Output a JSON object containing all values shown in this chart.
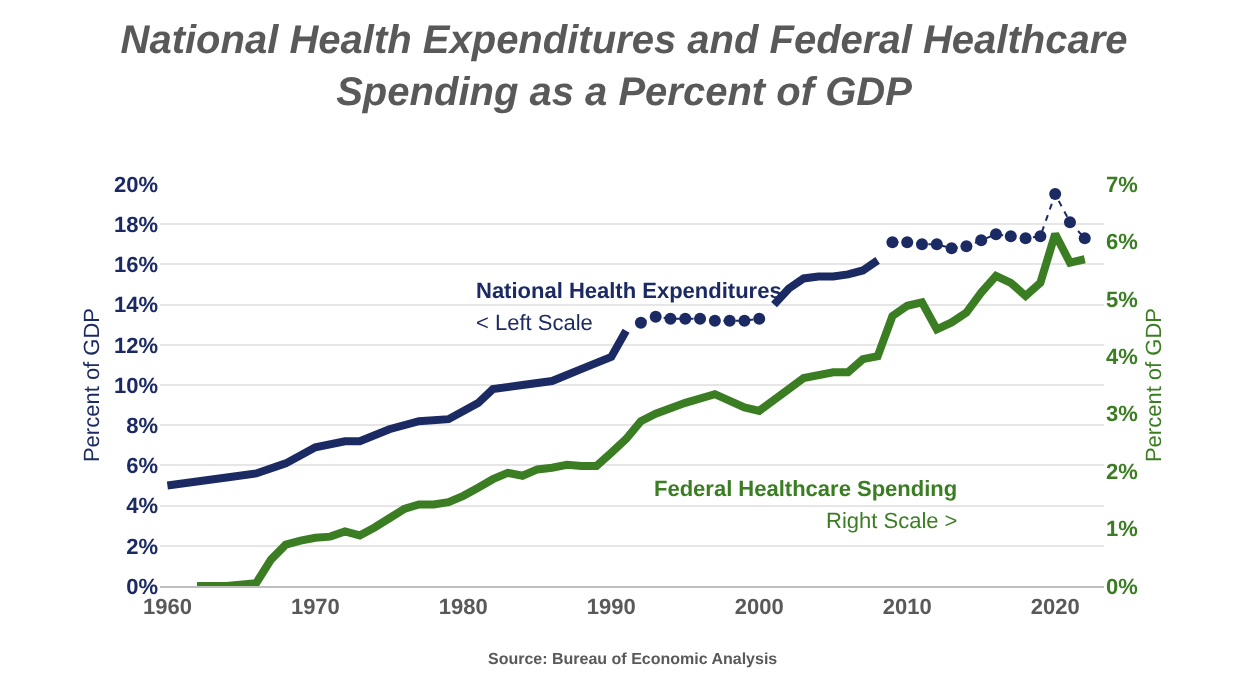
{
  "chart_data": {
    "type": "line",
    "title": "National Health Expenditures and Federal Healthcare\nSpending as a Percent of GDP",
    "ylabel": "Percent of GDP",
    "y2label": "Percent of GDP",
    "xlim": [
      1959.5,
      2023.3
    ],
    "xticks": [
      1960,
      1970,
      1980,
      1990,
      2000,
      2010,
      2020
    ],
    "ylim": [
      0,
      20
    ],
    "yticks": [
      {
        "value": 0,
        "label": "0%"
      },
      {
        "value": 2,
        "label": "2%"
      },
      {
        "value": 4,
        "label": "4%"
      },
      {
        "value": 6,
        "label": "6%"
      },
      {
        "value": 8,
        "label": "8%"
      },
      {
        "value": 10,
        "label": "10%"
      },
      {
        "value": 12,
        "label": "12%"
      },
      {
        "value": 14,
        "label": "14%"
      },
      {
        "value": 16,
        "label": "16%"
      },
      {
        "value": 18,
        "label": "18%"
      },
      {
        "value": 20,
        "label": "20%"
      }
    ],
    "y2lim": [
      0,
      7
    ],
    "y2ticks": [
      {
        "value": 0,
        "label": "0%"
      },
      {
        "value": 1,
        "label": "1%"
      },
      {
        "value": 2,
        "label": "2%"
      },
      {
        "value": 3,
        "label": "3%"
      },
      {
        "value": 4,
        "label": "4%"
      },
      {
        "value": 5,
        "label": "5%"
      },
      {
        "value": 6,
        "label": "6%"
      },
      {
        "value": 7,
        "label": "7%"
      }
    ],
    "grid": "y",
    "series": [
      {
        "color": "#1b2a63",
        "line_style": "solid",
        "marker": "none",
        "x": [
          1960,
          1962,
          1964,
          1966,
          1968,
          1970,
          1972,
          1973,
          1975,
          1977,
          1979,
          1981,
          1982,
          1984,
          1986,
          1988,
          1990,
          1991
        ],
        "values": [
          5.0,
          5.2,
          5.4,
          5.6,
          6.1,
          6.9,
          7.2,
          7.2,
          7.8,
          8.2,
          8.3,
          9.1,
          9.8,
          10.0,
          10.2,
          10.8,
          11.4,
          12.7
        ]
      },
      {
        "color": "#1b2a63",
        "line_style": "dotted",
        "marker": "circle",
        "x": [
          1992,
          1993,
          1994,
          1995,
          1996,
          1997,
          1998,
          1999,
          2000
        ],
        "values": [
          13.1,
          13.4,
          13.3,
          13.3,
          13.3,
          13.2,
          13.2,
          13.2,
          13.3
        ]
      },
      {
        "color": "#1b2a63",
        "line_style": "solid",
        "marker": "none",
        "x": [
          2001,
          2002,
          2003,
          2004,
          2005,
          2006,
          2007,
          2008
        ],
        "values": [
          14.0,
          14.8,
          15.3,
          15.4,
          15.4,
          15.5,
          15.7,
          16.2
        ]
      },
      {
        "color": "#1b2a63",
        "line_style": "dotted",
        "marker": "circle",
        "x": [
          2009,
          2010,
          2011,
          2012,
          2013,
          2014,
          2015,
          2016,
          2017,
          2018,
          2019,
          2020,
          2021,
          2022
        ],
        "values": [
          17.1,
          17.1,
          17.0,
          17.0,
          16.8,
          16.9,
          17.2,
          17.5,
          17.4,
          17.3,
          17.4,
          19.5,
          18.1,
          17.3
        ]
      },
      {
        "color": "#3a7d22",
        "line_style": "solid",
        "marker": "none",
        "axis": "y2",
        "x": [
          1962,
          1964,
          1966,
          1967,
          1968,
          1969,
          1970,
          1971,
          1972,
          1973,
          1974,
          1975,
          1976,
          1977,
          1978,
          1979,
          1980,
          1981,
          1982,
          1983,
          1984,
          1985,
          1986,
          1987,
          1988,
          1989,
          1990,
          1991,
          1992,
          1993,
          1995,
          1997,
          1999,
          2000,
          2002,
          2003,
          2005,
          2006,
          2007,
          2008,
          2009,
          2010,
          2011,
          2012,
          2013,
          2014,
          2015,
          2016,
          2017,
          2018,
          2019,
          2020,
          2021,
          2022
        ],
        "values": [
          0.0,
          0.0,
          0.05,
          0.46,
          0.72,
          0.79,
          0.84,
          0.86,
          0.95,
          0.88,
          1.02,
          1.18,
          1.34,
          1.42,
          1.42,
          1.46,
          1.57,
          1.71,
          1.86,
          1.97,
          1.92,
          2.03,
          2.06,
          2.11,
          2.09,
          2.09,
          2.32,
          2.56,
          2.87,
          3.0,
          3.19,
          3.34,
          3.11,
          3.05,
          3.43,
          3.62,
          3.72,
          3.72,
          3.95,
          4.0,
          4.7,
          4.88,
          4.94,
          4.47,
          4.59,
          4.76,
          5.11,
          5.4,
          5.28,
          5.05,
          5.28,
          6.13,
          5.63,
          5.69
        ]
      }
    ],
    "annotations": [
      "National Health Expenditures",
      "< Left Scale",
      "Federal Healthcare Spending",
      "Right Scale >",
      "Source: Bureau of Economic Analysis"
    ]
  }
}
